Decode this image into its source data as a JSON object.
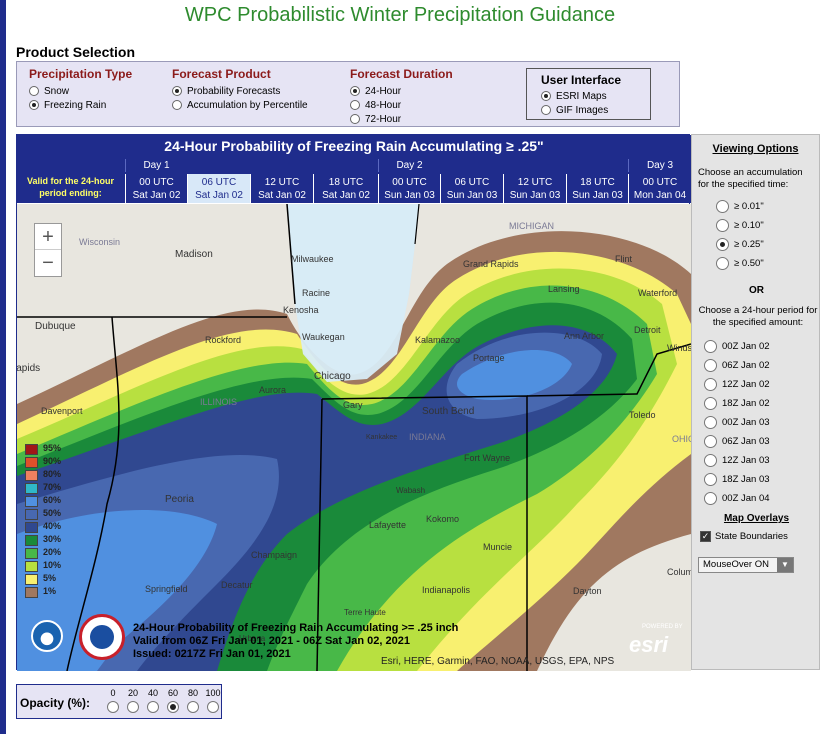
{
  "page_title": "WPC Probabilistic Winter Precipitation Guidance",
  "product_selection": {
    "title": "Product Selection",
    "precip_type": {
      "title": "Precipitation Type",
      "options": [
        "Snow",
        "Freezing Rain"
      ],
      "selected": "Freezing Rain"
    },
    "forecast_product": {
      "title": "Forecast Product",
      "options": [
        "Probability Forecasts",
        "Accumulation by Percentile"
      ],
      "selected": "Probability Forecasts"
    },
    "forecast_duration": {
      "title": "Forecast Duration",
      "options": [
        "24-Hour",
        "48-Hour",
        "72-Hour"
      ],
      "selected": "24-Hour"
    },
    "user_interface": {
      "title": "User Interface",
      "options": [
        "ESRI Maps",
        "GIF Images"
      ],
      "selected": "ESRI Maps"
    }
  },
  "map": {
    "header": "24-Hour Probability of Freezing Rain Accumulating ≥ .25\"",
    "valid_label": "Valid for the 24-hour period ending:",
    "days": [
      "Day 1",
      "Day 2",
      "Day 3"
    ],
    "times": [
      {
        "utc": "00 UTC",
        "date": "Sat Jan 02"
      },
      {
        "utc": "06 UTC",
        "date": "Sat Jan 02"
      },
      {
        "utc": "12 UTC",
        "date": "Sat Jan 02"
      },
      {
        "utc": "18 UTC",
        "date": "Sat Jan 02"
      },
      {
        "utc": "00 UTC",
        "date": "Sun Jan 03"
      },
      {
        "utc": "06 UTC",
        "date": "Sun Jan 03"
      },
      {
        "utc": "12 UTC",
        "date": "Sun Jan 03"
      },
      {
        "utc": "18 UTC",
        "date": "Sun Jan 03"
      },
      {
        "utc": "00 UTC",
        "date": "Mon Jan 04"
      }
    ],
    "selected_time_index": 1,
    "zoom_in": "+",
    "zoom_out": "−",
    "legend": [
      {
        "label": "95%",
        "color": "#a01818"
      },
      {
        "label": "90%",
        "color": "#e0502a"
      },
      {
        "label": "80%",
        "color": "#f08060"
      },
      {
        "label": "70%",
        "color": "#30b8c8"
      },
      {
        "label": "60%",
        "color": "#5090e0"
      },
      {
        "label": "50%",
        "color": "#4868b0"
      },
      {
        "label": "40%",
        "color": "#304890"
      },
      {
        "label": "30%",
        "color": "#1a8a3a"
      },
      {
        "label": "20%",
        "color": "#48b848"
      },
      {
        "label": "10%",
        "color": "#b8e040"
      },
      {
        "label": "5%",
        "color": "#f8f070"
      },
      {
        "label": "1%",
        "color": "#a07860"
      }
    ],
    "caption_lines": [
      "24-Hour Probability of Freezing Rain Accumulating >= .25 inch",
      "Valid from 06Z Fri Jan 01, 2021 - 06Z Sat Jan 02, 2021",
      "Issued: 0217Z Fri Jan 01, 2021"
    ],
    "attribution": "Esri, HERE, Garmin, FAO, NOAA, USGS, EPA, NPS",
    "esri_logo": "esri",
    "powered_by": "POWERED BY",
    "places": [
      "Wisconsin",
      "Madison",
      "Milwaukee",
      "Racine",
      "Kenosha",
      "Waukegan",
      "Dubuque",
      "Rockford",
      "Chicago",
      "Aurora",
      "Gary",
      "Davenport",
      "Rapids",
      "ILLINOIS",
      "Peoria",
      "Champaign",
      "Springfield",
      "Decatur",
      "Terre Haute",
      "MICHIGAN",
      "Grand Rapids",
      "Lansing",
      "Flint",
      "Waterford",
      "Detroit",
      "Windsor",
      "Ann Arbor",
      "Kalamazoo",
      "Portage",
      "South Bend",
      "Toledo",
      "OHIO",
      "Fort Wayne",
      "Kankakee",
      "INDIANA",
      "Wabash",
      "Kokomo",
      "Lafayette",
      "Muncie",
      "Indianapolis",
      "Dayton",
      "Columbus",
      "Urbana"
    ]
  },
  "viewing_options": {
    "title": "Viewing Options",
    "accum_prompt": "Choose an accumulation for the specified time:",
    "accum_options": [
      "≥ 0.01\"",
      "≥ 0.10\"",
      "≥ 0.25\"",
      "≥ 0.50\""
    ],
    "accum_selected": "≥ 0.25\"",
    "or_label": "OR",
    "period_prompt": "Choose a 24-hour period for the specified amount:",
    "periods": [
      "00Z Jan 02",
      "06Z Jan 02",
      "12Z Jan 02",
      "18Z Jan 02",
      "00Z Jan 03",
      "06Z Jan 03",
      "12Z Jan 03",
      "18Z Jan 03",
      "00Z Jan 04"
    ],
    "overlays_title": "Map Overlays",
    "overlay_state": "State Boundaries",
    "mouseover": "MouseOver ON"
  },
  "opacity": {
    "label": "Opacity (%):",
    "options": [
      "0",
      "20",
      "40",
      "60",
      "80",
      "100"
    ],
    "selected": "60"
  }
}
